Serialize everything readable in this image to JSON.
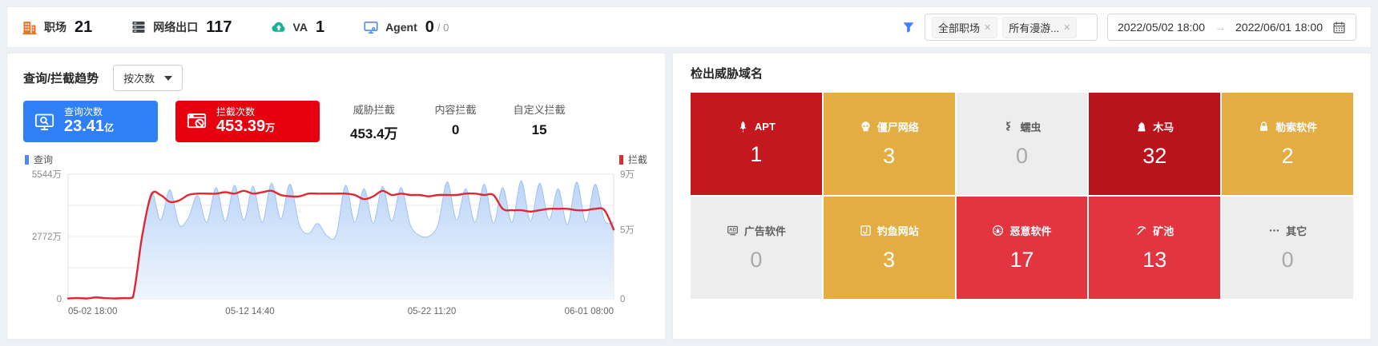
{
  "topbar": {
    "items": [
      {
        "label": "职场",
        "value": "21",
        "color": "#e87425"
      },
      {
        "label": "网络出口",
        "value": "117",
        "color": "#3e434a"
      },
      {
        "label": "VA",
        "value": "1",
        "color": "#17b394"
      },
      {
        "label": "Agent",
        "value": "0",
        "suffix": "/ 0",
        "color": "#4a8ef5"
      }
    ],
    "filter": {
      "icon_color": "#3d7ffc",
      "tags": [
        {
          "label": "全部职场",
          "close": "✕"
        },
        {
          "label": "所有漫游...",
          "close": "✕"
        }
      ]
    },
    "date_range": {
      "start": "2022/05/02 18:00",
      "arrow": "→",
      "end": "2022/06/01 18:00"
    }
  },
  "trend_panel": {
    "title": "查询/拦截趋势",
    "mode_select": {
      "value": "按次数"
    },
    "query_card": {
      "label": "查询次数",
      "value": "23.41",
      "unit": "亿",
      "bg": "#2f80f7"
    },
    "block_card": {
      "label": "拦截次数",
      "value": "453.39",
      "unit": "万",
      "bg": "#e7000e"
    },
    "stats": [
      {
        "label": "威胁拦截",
        "value": "453.4万"
      },
      {
        "label": "内容拦截",
        "value": "0"
      },
      {
        "label": "自定义拦截",
        "value": "15"
      }
    ],
    "legends": {
      "query": {
        "label": "查询",
        "color": "#4a8af4"
      },
      "block": {
        "label": "拦截",
        "color": "#df2833"
      }
    }
  },
  "chart_data": {
    "type": "area-line-combo",
    "title": "查询/拦截趋势",
    "grid": true,
    "x_range": [
      "2022-05-02 18:00",
      "2022-06-01 18:00"
    ],
    "x_tick_labels": [
      "05-02 18:00",
      "05-12 14:40",
      "05-22 11:20",
      "06-01 08:00"
    ],
    "y_left": {
      "name": "查询",
      "unit": "万",
      "max": 5544,
      "tick_values": [
        5544,
        2772,
        0
      ],
      "tick_labels": [
        "5544万",
        "2772万",
        "0"
      ]
    },
    "y_right": {
      "name": "拦截",
      "unit": "万",
      "max": 9,
      "tick_values": [
        9,
        5,
        0
      ],
      "tick_labels": [
        "9万",
        "5万",
        "0"
      ]
    },
    "series": [
      {
        "name": "查询",
        "type": "area",
        "axis": "left",
        "color": "#4a8af4",
        "edge_color": "#9fc3f2",
        "fill_top": "#bcd5f8",
        "fill_bottom": "#f0f6fd",
        "values": [
          20,
          60,
          25,
          110,
          45,
          25,
          60,
          120,
          2600,
          4750,
          3500,
          4850,
          3300,
          3600,
          4600,
          3400,
          4950,
          3450,
          5050,
          3500,
          5000,
          3400,
          5150,
          3550,
          5100,
          3300,
          2900,
          3350,
          2800,
          2850,
          5050,
          3400,
          4900,
          3350,
          5000,
          3450,
          4950,
          3300,
          2820,
          2780,
          3300,
          5200,
          3500,
          4900,
          3400,
          5100,
          3350,
          4950,
          3400,
          5250,
          3450,
          5150,
          3500,
          4900,
          3300,
          5200,
          3400,
          5100,
          3500,
          3400
        ]
      },
      {
        "name": "拦截",
        "type": "line",
        "axis": "right",
        "color": "#df2833",
        "values": [
          0.03,
          0.06,
          0.03,
          0.1,
          0.05,
          0.03,
          0.05,
          0.1,
          4.5,
          7.5,
          7.5,
          7.0,
          7.1,
          7.5,
          7.6,
          7.6,
          7.6,
          7.7,
          7.6,
          7.8,
          7.6,
          7.7,
          7.8,
          7.5,
          7.4,
          7.4,
          7.6,
          7.6,
          7.6,
          7.6,
          7.6,
          7.5,
          7.2,
          7.4,
          7.8,
          7.5,
          7.6,
          7.5,
          7.5,
          7.4,
          7.5,
          7.5,
          7.5,
          7.6,
          7.6,
          7.5,
          7.5,
          6.5,
          6.4,
          6.4,
          6.3,
          6.4,
          6.5,
          6.5,
          6.5,
          6.4,
          6.4,
          6.5,
          6.4,
          5.0
        ]
      }
    ]
  },
  "threat_panel": {
    "title": "检出威胁域名",
    "tiles": [
      {
        "label": "APT",
        "value": "1",
        "bg": "#c2181e",
        "label_color": "#ffffff",
        "value_color": "#ffffff",
        "icon": "rocket-icon"
      },
      {
        "label": "僵尸网络",
        "value": "3",
        "bg": "#e4ad43",
        "label_color": "#ffffff",
        "value_color": "#ffffff",
        "icon": "skull-icon"
      },
      {
        "label": "蠕虫",
        "value": "0",
        "bg": "#ededed",
        "label_color": "#5f5f5f",
        "value_color": "#a9a9a9",
        "icon": "worm-icon"
      },
      {
        "label": "木马",
        "value": "32",
        "bg": "#b9141b",
        "label_color": "#ffffff",
        "value_color": "#ffffff",
        "icon": "trojan-horse-icon"
      },
      {
        "label": "勒索软件",
        "value": "2",
        "bg": "#e4ad43",
        "label_color": "#ffffff",
        "value_color": "#ffffff",
        "icon": "ransom-lock-icon"
      },
      {
        "label": "广告软件",
        "value": "0",
        "bg": "#ededed",
        "label_color": "#5f5f5f",
        "value_color": "#a9a9a9",
        "icon": "ad-icon"
      },
      {
        "label": "钓鱼网站",
        "value": "3",
        "bg": "#e4ad43",
        "label_color": "#ffffff",
        "value_color": "#ffffff",
        "icon": "phishing-hook-icon"
      },
      {
        "label": "恶意软件",
        "value": "17",
        "bg": "#e23540",
        "label_color": "#ffffff",
        "value_color": "#ffffff",
        "icon": "malware-bug-icon"
      },
      {
        "label": "矿池",
        "value": "13",
        "bg": "#e23540",
        "label_color": "#ffffff",
        "value_color": "#ffffff",
        "icon": "pickaxe-icon"
      },
      {
        "label": "其它",
        "value": "0",
        "bg": "#ededed",
        "label_color": "#5f5f5f",
        "value_color": "#a9a9a9",
        "icon": "ellipsis-icon"
      }
    ]
  }
}
